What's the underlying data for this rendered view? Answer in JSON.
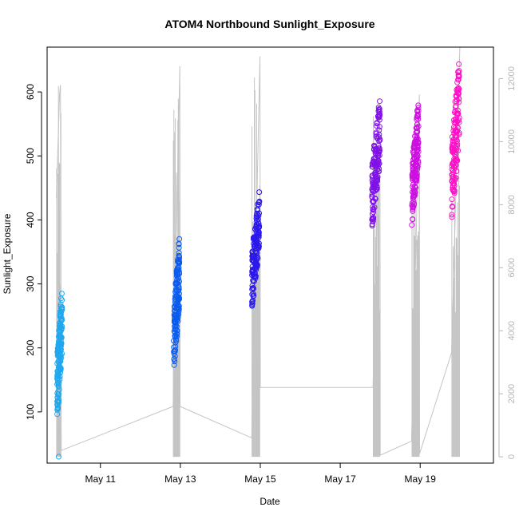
{
  "chart_data": {
    "type": "scatter",
    "title": "ATOM4 Northbound Sunlight_Exposure",
    "xlabel": "Date",
    "ylabel": "Sunlight_Exposure",
    "x_is_date": true,
    "xlim": [
      "2024-05-09 16:00",
      "2024-05-20 20:00"
    ],
    "ylim": [
      20,
      670
    ],
    "y2lim": [
      -200,
      13000
    ],
    "x_ticks": [
      {
        "date": "2024-05-11 00:00",
        "label": "May 11"
      },
      {
        "date": "2024-05-13 00:00",
        "label": "May 13"
      },
      {
        "date": "2024-05-15 00:00",
        "label": "May 15"
      },
      {
        "date": "2024-05-17 00:00",
        "label": "May 17"
      },
      {
        "date": "2024-05-19 00:00",
        "label": "May 19"
      }
    ],
    "y_ticks": [
      100,
      200,
      300,
      400,
      500,
      600
    ],
    "y2_ticks": [
      0,
      2000,
      4000,
      6000,
      8000,
      10000,
      12000
    ],
    "grid": false,
    "marker": "open-circle",
    "color_gradient": [
      "#1fa8f0",
      "#0a50f0",
      "#3a10e8",
      "#8a10e8",
      "#ff10c8"
    ],
    "secondary_series_color": "#c4c4c4",
    "clusters": [
      {
        "start": "2024-05-09 22:00",
        "end": "2024-05-10 01:00",
        "y_min": 80,
        "y_max": 300,
        "outlier": 30,
        "color": "#1fa8f0"
      },
      {
        "start": "2024-05-12 20:00",
        "end": "2024-05-12 23:30",
        "y_min": 160,
        "y_max": 375,
        "color": "#0a5cf0"
      },
      {
        "start": "2024-05-14 19:00",
        "end": "2024-05-14 23:30",
        "y_min": 260,
        "y_max": 450,
        "color": "#2a18ec"
      },
      {
        "start": "2024-05-17 19:00",
        "end": "2024-05-17 23:50",
        "y_min": 380,
        "y_max": 595,
        "color": "#8010e8"
      },
      {
        "start": "2024-05-18 19:00",
        "end": "2024-05-18 23:00",
        "y_min": 390,
        "y_max": 590,
        "color": "#cc10e0"
      },
      {
        "start": "2024-05-19 19:00",
        "end": "2024-05-19 23:30",
        "y_min": 390,
        "y_max": 660,
        "color": "#ff10c8"
      }
    ],
    "secondary_series": {
      "name": "",
      "points": [
        [
          "2024-05-09 21:30",
          8200
        ],
        [
          "2024-05-09 23:30",
          11500
        ],
        [
          "2024-05-10 00:00",
          11800
        ],
        [
          "2024-05-10 00:30",
          200
        ],
        [
          "2024-05-12 19:40",
          1600
        ],
        [
          "2024-05-12 23:40",
          12400
        ],
        [
          "2024-05-12 23:50",
          1600
        ],
        [
          "2024-05-14 18:50",
          600
        ],
        [
          "2024-05-14 23:50",
          12700
        ],
        [
          "2024-05-15 00:00",
          2200
        ],
        [
          "2024-05-17 19:40",
          2200
        ],
        [
          "2024-05-17 23:50",
          11000
        ],
        [
          "2024-05-18 00:00",
          50
        ],
        [
          "2024-05-18 18:50",
          500
        ],
        [
          "2024-05-18 23:30",
          11500
        ],
        [
          "2024-05-18 23:40",
          100
        ],
        [
          "2024-05-19 18:50",
          3300
        ],
        [
          "2024-05-19 23:50",
          13000
        ]
      ],
      "spikes": [
        {
          "start": "2024-05-09 21:30",
          "end": "2024-05-10 00:30",
          "n": 8,
          "peak": 11800
        },
        {
          "start": "2024-05-12 19:40",
          "end": "2024-05-12 23:50",
          "n": 14,
          "peak": 12400
        },
        {
          "start": "2024-05-14 18:50",
          "end": "2024-05-14 23:50",
          "n": 14,
          "peak": 12700
        },
        {
          "start": "2024-05-17 19:40",
          "end": "2024-05-17 23:50",
          "n": 12,
          "peak": 11000
        },
        {
          "start": "2024-05-18 18:50",
          "end": "2024-05-18 23:40",
          "n": 10,
          "peak": 11500
        },
        {
          "start": "2024-05-19 18:50",
          "end": "2024-05-19 23:50",
          "n": 12,
          "peak": 13000
        }
      ]
    }
  }
}
